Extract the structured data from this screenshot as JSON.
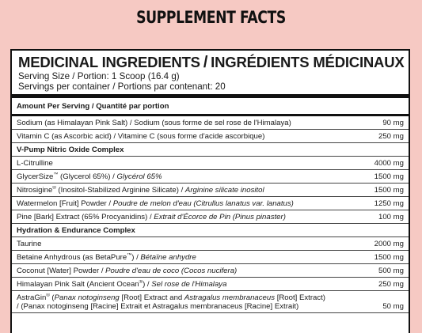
{
  "title": "SUPPLEMENT FACTS",
  "panel": {
    "heading_en": "MEDICINAL INGREDIENTS",
    "heading_sep": "/",
    "heading_fr": "INGRÉDIENTS MÉDICINAUX",
    "serving_size": "Serving Size / Portion: 1 Scoop (16.4 g)",
    "servings_per_container": "Servings per container / Portions par contenant: 20",
    "amount_per_serving": "Amount Per Serving / Quantité par portion"
  },
  "rows": [
    {
      "name": "Sodium (as Himalayan Pink Salt) / Sodium (sous forme de sel rose de l'Himalaya)",
      "amount": "90 mg"
    },
    {
      "name": "Vitamin C (as Ascorbic acid) / Vitamine C (sous forme d'acide ascorbique)",
      "amount": "250 mg"
    },
    {
      "section": "V-Pump Nitric Oxide Complex"
    },
    {
      "name": "L-Citrulline",
      "amount": "4000 mg"
    },
    {
      "name_plain": "GlycerSize",
      "tm": "™",
      "name_rest": " (Glycerol 65%) / ",
      "name_italic": "Glycérol 65%",
      "amount": "1500 mg"
    },
    {
      "name_plain": "Nitrosigine",
      "tm": "®",
      "name_rest": " (Inositol-Stabilized Arginine Silicate) / ",
      "name_italic": "Arginine silicate inositol",
      "amount": "1500 mg"
    },
    {
      "name_plain": "Watermelon [Fruit] Powder / ",
      "name_italic": "Poudre de melon d'eau (Citrullus lanatus var. lanatus)",
      "amount": "1250 mg"
    },
    {
      "name_plain": "Pine [Bark] Extract (65% Procyanidins) / ",
      "name_italic": "Extrait d'Écorce de Pin (Pinus pinaster)",
      "amount": "100 mg"
    },
    {
      "section": "Hydration & Endurance Complex"
    },
    {
      "name": "Taurine",
      "amount": "2000 mg"
    },
    {
      "name_plain": "Betaine Anhydrous (as BetaPure",
      "tm": "™",
      "name_rest": ") / ",
      "name_italic": "Bétaïne anhydre",
      "amount": "1500 mg"
    },
    {
      "name_plain": "Coconut [Water] Powder / ",
      "name_italic": "Poudre d'eau de coco (Cocos nucifera)",
      "amount": "500 mg"
    },
    {
      "name_plain": "Himalayan Pink Salt (Ancient Ocean",
      "tm": "®",
      "name_rest": ") / ",
      "name_italic": "Sel rose de l'Himalaya",
      "amount": "250 mg"
    }
  ],
  "astragin": {
    "line1_a": "AstraGin",
    "line1_tm": "®",
    "line1_b": " (",
    "line1_c": "Panax notoginseng",
    "line1_d": " [Root] Extract and ",
    "line1_e": "Astragalus membranaceus",
    "line1_f": " [Root] Extract)",
    "line2": "/ (Panax notoginseng [Racine] Extrait et Astragalus membranaceus [Racine] Extrait)",
    "amount": "50 mg"
  }
}
